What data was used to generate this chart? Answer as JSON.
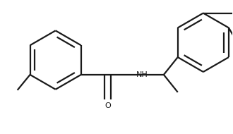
{
  "bg_color": "#ffffff",
  "line_color": "#1a1a1a",
  "line_width": 1.6,
  "fig_width": 3.3,
  "fig_height": 1.9,
  "dpi": 100
}
